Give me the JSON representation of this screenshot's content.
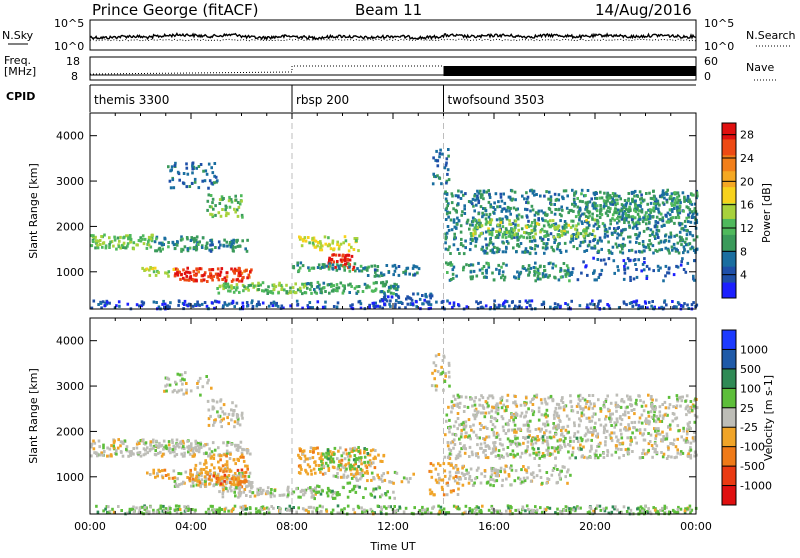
{
  "header": {
    "station": "Prince George (fitACF)",
    "beam": "Beam 11",
    "date": "14/Aug/2016"
  },
  "top_panels": {
    "nsky_label": "N.Sky",
    "nsearch_label": "N.Search",
    "freq_label_1": "Freq.",
    "freq_label_2": "[MHz]",
    "nave_label": "Nave",
    "cpid_label": "CPID",
    "noise_left_ticks": [
      "10^5",
      "10^0"
    ],
    "noise_right_ticks": [
      "10^5",
      "10^0"
    ],
    "freq_ticks": [
      "18",
      "8"
    ],
    "nave_ticks": [
      "60",
      "0"
    ]
  },
  "cpid": {
    "segments": [
      {
        "start_hour": 0,
        "label": "themis 3300"
      },
      {
        "start_hour": 8,
        "label": "rbsp 200"
      },
      {
        "start_hour": 14,
        "label": "twofsound 3503"
      }
    ]
  },
  "colors": {
    "power": [
      "#1c20ff",
      "#1e4fa8",
      "#1a6ea0",
      "#3a9a5a",
      "#4fb95c",
      "#a8d23c",
      "#f7d21c",
      "#f5a823",
      "#f27f1a",
      "#ee4a14",
      "#e01010"
    ],
    "velocity": [
      "#1c3aff",
      "#1f5aa8",
      "#2f8a55",
      "#5dbe3a",
      "#bdbdb7",
      "#f0a428",
      "#ef7a18",
      "#ea3a12",
      "#e01010"
    ]
  },
  "chart_data": [
    {
      "type": "heatmap",
      "quantity": "Power",
      "xlabel": "",
      "ylabel": "Slant Range [km]",
      "x_unit": "hours UT",
      "xlim": [
        0,
        24
      ],
      "ylim": [
        180,
        4500
      ],
      "y_ticks": [
        "1000",
        "2000",
        "3000",
        "4000"
      ],
      "colorbar_label": "Power [dB]",
      "colorbar_ticks": [
        "4",
        "8",
        "12",
        "16",
        "20",
        "24",
        "28"
      ],
      "colorbar_range": [
        0,
        30
      ],
      "regions": [
        {
          "t": [
            0.0,
            2.5
          ],
          "r": [
            1500,
            1820
          ],
          "level": 13,
          "d": 0.85
        },
        {
          "t": [
            2.5,
            4.2
          ],
          "r": [
            1450,
            1780
          ],
          "level": 9,
          "d": 0.7
        },
        {
          "t": [
            4.0,
            6.2
          ],
          "r": [
            1450,
            1750
          ],
          "level": 8,
          "d": 0.65
        },
        {
          "t": [
            3.3,
            6.4
          ],
          "r": [
            780,
            1080
          ],
          "level": 27,
          "d": 0.95
        },
        {
          "t": [
            2.0,
            3.3
          ],
          "r": [
            900,
            1100
          ],
          "level": 16,
          "d": 0.6
        },
        {
          "t": [
            5.0,
            8.5
          ],
          "r": [
            520,
            760
          ],
          "level": 13,
          "d": 0.85
        },
        {
          "t": [
            4.6,
            6.0
          ],
          "r": [
            2200,
            2700
          ],
          "level": 12,
          "d": 0.55
        },
        {
          "t": [
            3.0,
            5.0
          ],
          "r": [
            2800,
            3400
          ],
          "level": 6,
          "d": 0.35
        },
        {
          "t": [
            8.2,
            10.6
          ],
          "r": [
            1450,
            1780
          ],
          "level": 16,
          "d": 0.55
        },
        {
          "t": [
            9.4,
            10.4
          ],
          "r": [
            1050,
            1380
          ],
          "level": 27,
          "d": 0.95
        },
        {
          "t": [
            8.0,
            11.0
          ],
          "r": [
            1000,
            1200
          ],
          "level": 10,
          "d": 0.6
        },
        {
          "t": [
            8.5,
            12.2
          ],
          "r": [
            520,
            780
          ],
          "level": 10,
          "d": 0.75
        },
        {
          "t": [
            10.5,
            13.0
          ],
          "r": [
            900,
            1150
          ],
          "level": 8,
          "d": 0.55
        },
        {
          "t": [
            11.5,
            13.5
          ],
          "r": [
            250,
            520
          ],
          "level": 5,
          "d": 0.7
        },
        {
          "t": [
            13.5,
            14.2
          ],
          "r": [
            2900,
            3700
          ],
          "level": 6,
          "d": 0.4
        },
        {
          "t": [
            14.0,
            24.0
          ],
          "r": [
            1400,
            2800
          ],
          "level": 8,
          "d": 0.5
        },
        {
          "t": [
            15.0,
            20.0
          ],
          "r": [
            1750,
            2150
          ],
          "level": 14,
          "d": 0.5
        },
        {
          "t": [
            19.0,
            24.0
          ],
          "r": [
            2050,
            2750
          ],
          "level": 10,
          "d": 0.45
        },
        {
          "t": [
            14.0,
            19.0
          ],
          "r": [
            800,
            1200
          ],
          "level": 9,
          "d": 0.5
        },
        {
          "t": [
            19.0,
            24.0
          ],
          "r": [
            800,
            1300
          ],
          "level": 5,
          "d": 0.25
        },
        {
          "t": [
            0.0,
            24.0
          ],
          "r": [
            180,
            360
          ],
          "level": 4,
          "d": 0.55
        }
      ]
    },
    {
      "type": "heatmap",
      "quantity": "Velocity",
      "xlabel": "Time UT",
      "ylabel": "Slant Range [km]",
      "x_unit": "hours UT",
      "xlim": [
        0,
        24
      ],
      "ylim": [
        180,
        4500
      ],
      "x_ticks": [
        "00:00",
        "04:00",
        "08:00",
        "12:00",
        "16:00",
        "20:00",
        "00:00"
      ],
      "y_ticks": [
        "1000",
        "2000",
        "3000",
        "4000"
      ],
      "colorbar_label": "Velocity [m s-1]",
      "colorbar_ticks": [
        "1000",
        "500",
        "100",
        "25",
        "-25",
        "-100",
        "-500",
        "-1000"
      ],
      "regions": [
        {
          "t": [
            0.0,
            4.2
          ],
          "r": [
            1450,
            1820
          ],
          "cat": 4,
          "d": 0.85
        },
        {
          "t": [
            4.0,
            6.3
          ],
          "r": [
            1450,
            1780
          ],
          "cat": 4,
          "d": 0.6
        },
        {
          "t": [
            4.6,
            6.0
          ],
          "r": [
            2100,
            2700
          ],
          "cat": 4,
          "d": 0.5
        },
        {
          "t": [
            2.8,
            4.8
          ],
          "r": [
            2800,
            3300
          ],
          "cat": 4,
          "d": 0.3
        },
        {
          "t": [
            3.3,
            6.4
          ],
          "r": [
            780,
            1100
          ],
          "cat": 4,
          "d": 0.85
        },
        {
          "t": [
            4.0,
            6.2
          ],
          "r": [
            800,
            1500
          ],
          "cat": 5,
          "d": 0.55
        },
        {
          "t": [
            4.8,
            6.2
          ],
          "r": [
            780,
            1150
          ],
          "cat": 6,
          "d": 0.45
        },
        {
          "t": [
            2.2,
            4.0
          ],
          "r": [
            950,
            1150
          ],
          "cat": 5,
          "d": 0.5
        },
        {
          "t": [
            5.0,
            9.0
          ],
          "r": [
            550,
            780
          ],
          "cat": 4,
          "d": 0.8
        },
        {
          "t": [
            8.2,
            11.6
          ],
          "r": [
            1050,
            1650
          ],
          "cat": 5,
          "d": 0.55
        },
        {
          "t": [
            9.0,
            11.0
          ],
          "r": [
            1150,
            1650
          ],
          "cat": 3,
          "d": 0.45
        },
        {
          "t": [
            8.6,
            12.2
          ],
          "r": [
            520,
            800
          ],
          "cat": 3,
          "d": 0.45
        },
        {
          "t": [
            9.5,
            12.8
          ],
          "r": [
            850,
            1100
          ],
          "cat": 4,
          "d": 0.45
        },
        {
          "t": [
            13.4,
            14.6
          ],
          "r": [
            600,
            1300
          ],
          "cat": 5,
          "d": 0.45
        },
        {
          "t": [
            13.5,
            14.2
          ],
          "r": [
            2900,
            3700
          ],
          "cat": 4,
          "d": 0.4
        },
        {
          "t": [
            14.0,
            24.0
          ],
          "r": [
            1400,
            2800
          ],
          "cat": 4,
          "d": 0.5
        },
        {
          "t": [
            14.0,
            19.0
          ],
          "r": [
            800,
            1250
          ],
          "cat": 4,
          "d": 0.45
        },
        {
          "t": [
            16.5,
            19.5
          ],
          "r": [
            1400,
            1900
          ],
          "cat": 3,
          "d": 0.2
        },
        {
          "t": [
            0.0,
            24.0
          ],
          "r": [
            180,
            360
          ],
          "cat": 3,
          "d": 0.55
        },
        {
          "t": [
            0.0,
            24.0
          ],
          "r": [
            180,
            360
          ],
          "cat": 4,
          "d": 0.25
        }
      ]
    }
  ]
}
